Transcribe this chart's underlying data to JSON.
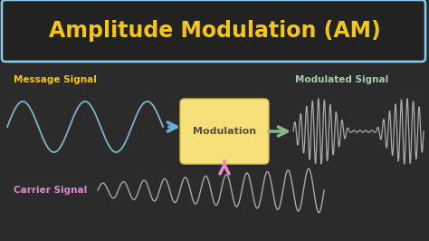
{
  "background_color": "#2b2b2b",
  "title_text": "Amplitude Modulation (AM)",
  "title_color": "#f5c518",
  "title_fontsize": 17,
  "title_box_edgecolor": "#88ccee",
  "title_box_facecolor": "#222222",
  "message_label": "Message Signal",
  "message_label_color": "#f5c518",
  "carrier_label": "Carrier Signal",
  "carrier_label_color": "#dd88cc",
  "modulated_label": "Modulated Signal",
  "modulated_label_color": "#aaccaa",
  "modulation_label": "Modulation",
  "modulation_label_color": "#555533",
  "message_color": "#7fb3cc",
  "carrier_color": "#aaaaaa",
  "modulated_color": "#aaaaaa",
  "box_facecolor": "#f5e07a",
  "box_edgecolor": "#d4b84a",
  "arrow_blue": "#6aaddd",
  "arrow_pink": "#ee88cc",
  "arrow_green": "#88bb88"
}
